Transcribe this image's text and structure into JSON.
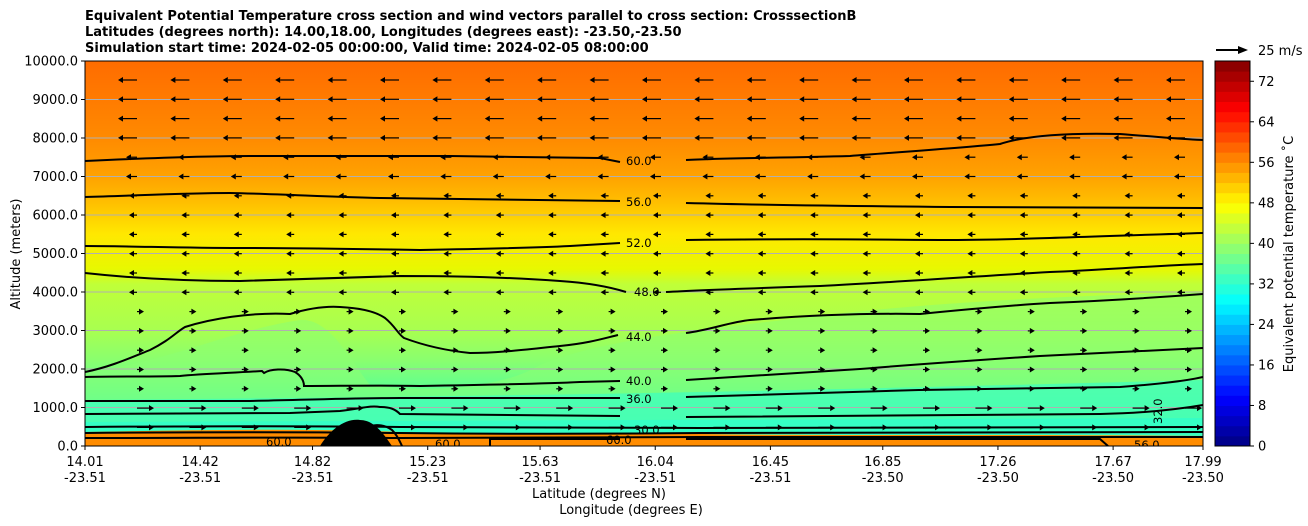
{
  "chart_data": {
    "type": "contour-cross-section",
    "title_lines": [
      "Equivalent Potential Temperature cross section and wind vectors parallel to cross section: CrosssectionB",
      "Latitudes (degrees north): 14.00,18.00, Longitudes (degrees east): -23.50,-23.50",
      "Simulation start time: 2024-02-05 00:00:00, Valid time: 2024-02-05 08:00:00"
    ],
    "ylabel": "Altitude (meters)",
    "xlabel_lat": "Latitude (degrees N)",
    "xlabel_lon": "Longitude (degrees E)",
    "ylim": [
      0,
      10000
    ],
    "y_ticks": [
      0,
      1000,
      2000,
      3000,
      4000,
      5000,
      6000,
      7000,
      8000,
      9000,
      10000
    ],
    "y_tick_labels": [
      "0.0",
      "1000.0",
      "2000.0",
      "3000.0",
      "4000.0",
      "5000.0",
      "6000.0",
      "7000.0",
      "8000.0",
      "9000.0",
      "10000.0"
    ],
    "x_lat": [
      14.01,
      14.42,
      14.82,
      15.23,
      15.63,
      16.04,
      16.45,
      16.85,
      17.26,
      17.67,
      17.99
    ],
    "x_lat_labels": [
      "14.01",
      "14.42",
      "14.82",
      "15.23",
      "15.63",
      "16.04",
      "16.45",
      "16.85",
      "17.26",
      "17.67",
      "17.99"
    ],
    "x_lon_labels": [
      "-23.51",
      "-23.51",
      "-23.51",
      "-23.51",
      "-23.51",
      "-23.51",
      "-23.51",
      "-23.50",
      "-23.50",
      "-23.50",
      "-23.50"
    ],
    "colorbar": {
      "label": "Equivalent potential temperature ˚C",
      "range": [
        0,
        76
      ],
      "ticks": [
        0,
        8,
        16,
        24,
        32,
        40,
        48,
        56,
        64,
        72
      ],
      "tick_labels": [
        "0",
        "8",
        "16",
        "24",
        "32",
        "40",
        "48",
        "56",
        "64",
        "72"
      ]
    },
    "quiver_key": "25 m/s",
    "contours": [
      {
        "level": 60.0,
        "label": "60.0",
        "altitude_at_16_04": 7350
      },
      {
        "level": 56.0,
        "label": "56.0",
        "altitude_at_16_04": 6300
      },
      {
        "level": 52.0,
        "label": "52.0",
        "altitude_at_16_04": 5250
      },
      {
        "level": 48.0,
        "label": "48.0",
        "altitude_at_16_04": 4000
      },
      {
        "level": 44.0,
        "label": "44.0",
        "altitude_at_16_04": 2850
      },
      {
        "level": 40.0,
        "label": "40.0",
        "altitude_at_16_04": 1650
      },
      {
        "level": 36.0,
        "label": "36.0",
        "altitude_at_16_04": 1200
      },
      {
        "level": 32.0,
        "label": "32.0",
        "altitude_at_16_04": 700
      }
    ],
    "near_surface_labels": [
      "60.0",
      "30.0",
      "56.0",
      "60.0",
      "60.0",
      "56.0"
    ],
    "grid": "horizontal"
  }
}
